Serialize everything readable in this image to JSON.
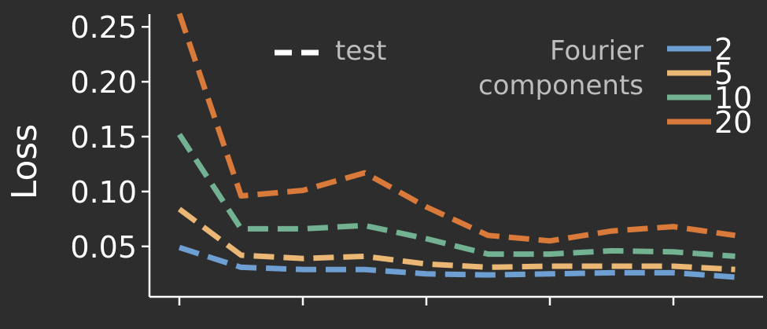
{
  "chart_data": {
    "type": "line",
    "ylabel": "Loss",
    "xlabel": "",
    "ylim": [
      0.015,
      0.265
    ],
    "yticks": [
      0.05,
      0.1,
      0.15,
      0.2,
      0.25
    ],
    "ytick_labels": [
      "0.05",
      "0.10",
      "0.15",
      "0.20",
      "0.25"
    ],
    "x": [
      0,
      1,
      2,
      3,
      4,
      5,
      6,
      7,
      8,
      9
    ],
    "x_major_tick_positions": [
      0,
      2,
      4,
      6,
      8
    ],
    "line_style": "dashed",
    "grid": false,
    "legend": {
      "style_entry": "test",
      "title": "Fourier\ncomponents",
      "title_lines": [
        "Fourier",
        "components"
      ],
      "placement": "top-right"
    },
    "series": [
      {
        "name": "2",
        "color": "#6e9fd3",
        "values": [
          0.049,
          0.031,
          0.029,
          0.029,
          0.025,
          0.024,
          0.025,
          0.026,
          0.026,
          0.022
        ]
      },
      {
        "name": "5",
        "color": "#eab874",
        "values": [
          0.084,
          0.042,
          0.039,
          0.041,
          0.034,
          0.031,
          0.032,
          0.032,
          0.032,
          0.029
        ]
      },
      {
        "name": "10",
        "color": "#72b293",
        "values": [
          0.152,
          0.066,
          0.066,
          0.069,
          0.057,
          0.043,
          0.043,
          0.046,
          0.045,
          0.041
        ]
      },
      {
        "name": "20",
        "color": "#d97a3a",
        "values": [
          0.262,
          0.096,
          0.101,
          0.117,
          0.086,
          0.06,
          0.055,
          0.064,
          0.068,
          0.06
        ]
      }
    ]
  }
}
